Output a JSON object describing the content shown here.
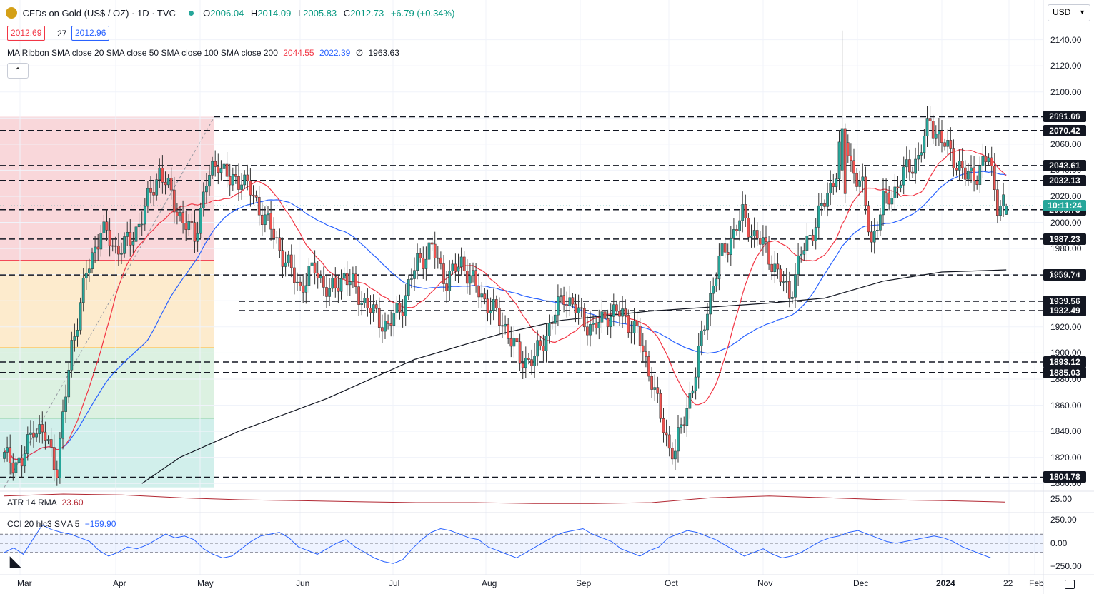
{
  "header": {
    "symbol": "CFDs on Gold (US$ / OZ) · 1D · TVC",
    "ohlc": {
      "o_label": "O",
      "o": "2006.04",
      "h_label": "H",
      "h": "2014.09",
      "l_label": "L",
      "l": "2005.83",
      "c_label": "C",
      "c": "2012.73",
      "change": "+6.79 (+0.34%)"
    },
    "bid": "2012.69",
    "spread": "27",
    "ask": "2012.96",
    "ma_label": "MA Ribbon SMA close 20 SMA close 50 SMA close 100 SMA close 200",
    "ma_values": [
      "2044.55",
      "2022.39",
      "∅",
      "1963.63"
    ],
    "collapse_glyph": "⌃"
  },
  "currency_button": "USD",
  "countdown": "10:11:24",
  "colors": {
    "bull": "#26a69a",
    "bear": "#ef5350",
    "sma20": "#f23645",
    "sma50": "#2962ff",
    "sma200": "#131722",
    "atr": "#b22833",
    "cci": "#2962ff",
    "fib_red": "#f8d0d3",
    "fib_orange": "#fde7c4",
    "fib_green": "#d6eedc",
    "fib_teal": "#c9ece8"
  },
  "atr": {
    "label": "ATR 14 RMA",
    "value": "23.60",
    "axis_label": "25.00"
  },
  "cci": {
    "label": "CCI 20 hlc3 SMA 5",
    "value": "−159.90",
    "axis_labels": [
      "250.00",
      "0.00",
      "−250.00"
    ]
  },
  "chart_data": {
    "type": "candlestick",
    "y_axis_labels": [
      "2140.00",
      "2120.00",
      "2100.00",
      "2080.00",
      "2060.00",
      "2040.00",
      "2020.00",
      "2000.00",
      "1980.00",
      "1960.00",
      "1940.00",
      "1920.00",
      "1900.00",
      "1880.00",
      "1860.00",
      "1840.00",
      "1820.00",
      "1800.00"
    ],
    "y_range": [
      1793,
      2154
    ],
    "x_axis_labels": [
      "Mar",
      "Apr",
      "May",
      "Jun",
      "Jul",
      "Aug",
      "Sep",
      "Oct",
      "Nov",
      "Dec",
      "2024",
      "Feb",
      "22"
    ],
    "levels": [
      "2081.00",
      "2070.42",
      "2043.61",
      "2032.13",
      "2009.75",
      "1987.23",
      "1959.74",
      "1939.56",
      "1932.49",
      "1893.12",
      "1885.03",
      "1804.78"
    ],
    "last_price": 2012.73,
    "anchors": [
      [
        0,
        1820
      ],
      [
        6,
        1815
      ],
      [
        10,
        1845
      ],
      [
        14,
        1835
      ],
      [
        18,
        1812
      ],
      [
        23,
        1905
      ],
      [
        28,
        1960
      ],
      [
        33,
        1995
      ],
      [
        38,
        1980
      ],
      [
        43,
        1985
      ],
      [
        48,
        2010
      ],
      [
        53,
        2040
      ],
      [
        57,
        2020
      ],
      [
        61,
        2000
      ],
      [
        65,
        1990
      ],
      [
        69,
        2030
      ],
      [
        73,
        2048
      ],
      [
        77,
        2030
      ],
      [
        81,
        2035
      ],
      [
        86,
        2015
      ],
      [
        91,
        1995
      ],
      [
        96,
        1970
      ],
      [
        101,
        1950
      ],
      [
        106,
        1965
      ],
      [
        111,
        1945
      ],
      [
        116,
        1960
      ],
      [
        121,
        1945
      ],
      [
        126,
        1930
      ],
      [
        131,
        1920
      ],
      [
        136,
        1938
      ],
      [
        141,
        1970
      ],
      [
        146,
        1980
      ],
      [
        151,
        1955
      ],
      [
        156,
        1970
      ],
      [
        161,
        1950
      ],
      [
        166,
        1935
      ],
      [
        171,
        1920
      ],
      [
        176,
        1895
      ],
      [
        181,
        1895
      ],
      [
        186,
        1920
      ],
      [
        191,
        1945
      ],
      [
        196,
        1930
      ],
      [
        201,
        1918
      ],
      [
        206,
        1930
      ],
      [
        211,
        1930
      ],
      [
        216,
        1915
      ],
      [
        221,
        1880
      ],
      [
        224,
        1850
      ],
      [
        227,
        1828
      ],
      [
        229,
        1825
      ],
      [
        232,
        1850
      ],
      [
        236,
        1885
      ],
      [
        240,
        1935
      ],
      [
        244,
        1970
      ],
      [
        248,
        1988
      ],
      [
        252,
        2005
      ],
      [
        256,
        1990
      ],
      [
        260,
        1980
      ],
      [
        264,
        1960
      ],
      [
        268,
        1945
      ],
      [
        272,
        1975
      ],
      [
        276,
        1995
      ],
      [
        280,
        2015
      ],
      [
        284,
        2040
      ],
      [
        286,
        2072
      ],
      [
        289,
        2045
      ],
      [
        293,
        2025
      ],
      [
        296,
        1985
      ],
      [
        300,
        2015
      ],
      [
        304,
        2025
      ],
      [
        308,
        2040
      ],
      [
        312,
        2050
      ],
      [
        316,
        2078
      ],
      [
        320,
        2062
      ],
      [
        324,
        2050
      ],
      [
        328,
        2035
      ],
      [
        332,
        2038
      ],
      [
        336,
        2050
      ],
      [
        339,
        2015
      ],
      [
        342,
        2012
      ]
    ],
    "special_candles": [
      {
        "i": 286,
        "open": 2040,
        "close": 2072,
        "high": 2147,
        "low": 2030
      },
      {
        "i": 287,
        "open": 2072,
        "close": 2022,
        "high": 2076,
        "low": 2015
      },
      {
        "i": 342,
        "open": 2006.04,
        "close": 2012.73,
        "high": 2014.09,
        "low": 2005.83
      }
    ],
    "sma200": [
      [
        47,
        1800
      ],
      [
        60,
        1820
      ],
      [
        80,
        1840
      ],
      [
        110,
        1865
      ],
      [
        140,
        1895
      ],
      [
        170,
        1915
      ],
      [
        190,
        1925
      ],
      [
        220,
        1932
      ],
      [
        240,
        1935
      ],
      [
        260,
        1938
      ],
      [
        280,
        1942
      ],
      [
        300,
        1955
      ],
      [
        320,
        1962
      ],
      [
        342,
        1963.63
      ]
    ],
    "atr_series": [
      30,
      32,
      31,
      28,
      26,
      25,
      24,
      23,
      23,
      22,
      22,
      23,
      28,
      30,
      28,
      26,
      25,
      23.6
    ],
    "cci_series": [
      -100,
      -50,
      -120,
      40,
      200,
      150,
      120,
      100,
      60,
      20,
      -80,
      -140,
      -100,
      -40,
      -60,
      -20,
      40,
      100,
      60,
      80,
      40,
      -60,
      -120,
      -160,
      -140,
      -60,
      20,
      80,
      100,
      120,
      60,
      -40,
      -80,
      -120,
      -60,
      0,
      40,
      -40,
      -100,
      -160,
      -200,
      -220,
      -180,
      -60,
      40,
      120,
      160,
      140,
      100,
      60,
      40,
      -40,
      -80,
      -120,
      -160,
      -100,
      -40,
      20,
      80,
      120,
      140,
      160,
      100,
      60,
      20,
      -60,
      -100,
      -140,
      -80,
      -40,
      60,
      100,
      140,
      120,
      80,
      40,
      -20,
      -80,
      -140,
      -100,
      -60,
      -120,
      -160,
      -140,
      -100,
      -40,
      20,
      60,
      80,
      120,
      140,
      100,
      60,
      20,
      0,
      20,
      40,
      60,
      80,
      60,
      20,
      -40,
      -80,
      -120,
      -160,
      -159.9
    ]
  }
}
